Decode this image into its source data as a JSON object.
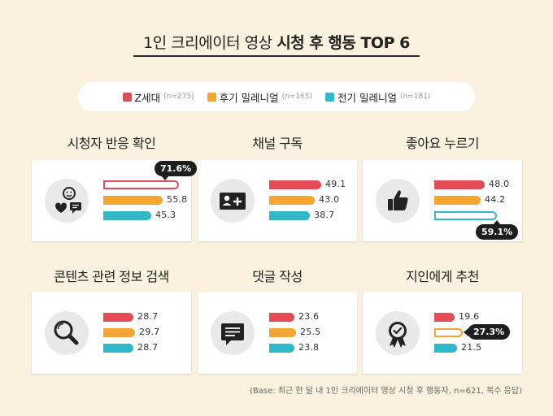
{
  "title": {
    "light": "1인 크리에이터 영상",
    "bold": "시청 후 행동 TOP 6"
  },
  "legend": [
    {
      "label": "Z세대",
      "n": "(n=275)",
      "color": "#e34c54"
    },
    {
      "label": "후기 밀레니얼",
      "n": "(n=165)",
      "color": "#f4a631"
    },
    {
      "label": "전기 밀레니얼",
      "n": "(n=181)",
      "color": "#2fb8c7"
    }
  ],
  "footnote": "(Base: 최근 한 달 내 1인 크리에이터 영상 시청 후 행동자, n=621, 복수 응답)",
  "chart_data": {
    "type": "bar",
    "title": "1인 크리에이터 영상 시청 후 행동 TOP 6",
    "categories": [
      "시청자 반응 확인",
      "채널 구독",
      "좋아요 누르기",
      "콘텐츠 관련 정보 검색",
      "댓글 작성",
      "지인에게 추천"
    ],
    "series": [
      {
        "name": "Z세대",
        "values": [
          71.6,
          49.1,
          48.0,
          28.7,
          23.6,
          19.6
        ]
      },
      {
        "name": "후기 밀레니얼",
        "values": [
          55.8,
          43.0,
          44.2,
          29.7,
          25.5,
          27.3
        ]
      },
      {
        "name": "전기 밀레니얼",
        "values": [
          45.3,
          38.7,
          59.1,
          28.7,
          23.8,
          21.5
        ]
      }
    ],
    "value_labels": [
      [
        "71.6%",
        "55.8",
        "45.3"
      ],
      [
        "49.1",
        "43.0",
        "38.7"
      ],
      [
        "48.0",
        "44.2",
        "59.1%"
      ],
      [
        "28.7",
        "29.7",
        "28.7"
      ],
      [
        "23.6",
        "25.5",
        "23.8"
      ],
      [
        "19.6",
        "27.3%",
        "21.5"
      ]
    ],
    "highlight": [
      [
        0,
        0
      ],
      [
        2,
        2
      ],
      [
        5,
        1
      ]
    ],
    "icons": [
      "smiley-heart-chat-icon",
      "subscribe-icon",
      "thumbs-up-icon",
      "magnifier-icon",
      "comment-icon",
      "award-badge-icon"
    ]
  }
}
